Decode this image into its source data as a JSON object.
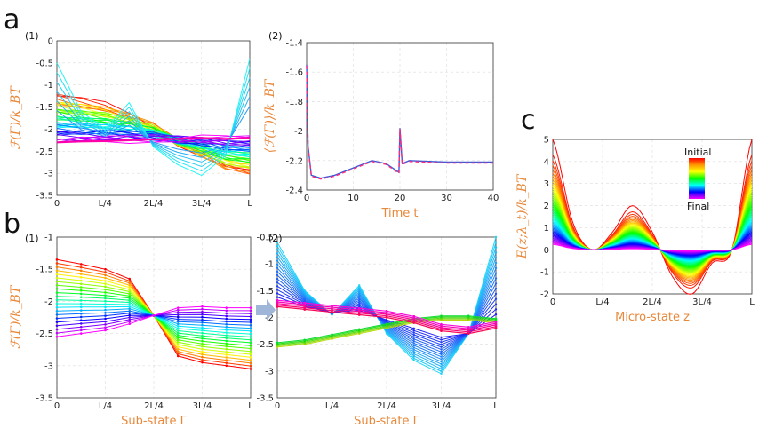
{
  "labels": {
    "panel_a": "a",
    "panel_b": "b",
    "panel_c": "c",
    "a1": "(1)",
    "a2": "(2)",
    "b1": "(1)",
    "b2": "(2)"
  },
  "chart_data": [
    {
      "id": "a1",
      "type": "line",
      "title": "(1)",
      "ylabel": "ℱ(Γ)/k_BT",
      "xlabel": "",
      "xticks": [
        "0",
        "L/4",
        "2L/4",
        "3L/4",
        "L"
      ],
      "yticks": [
        "0",
        "-0.5",
        "-1",
        "-1.5",
        "-2",
        "-2.5",
        "-3",
        "-3.5"
      ],
      "xlim": [
        0,
        1
      ],
      "ylim": [
        -3.5,
        0
      ],
      "description_series": "curves over sub-state Γ, colour from red (initial) through green and cyan to blue/magenta (final)",
      "series": [
        {
          "name": "initial",
          "values": [
            -1.25,
            -1.35,
            -1.45,
            -1.65,
            -1.9,
            -2.3,
            -2.6,
            -2.9,
            -3.0
          ]
        },
        {
          "name": "cyan outlier",
          "values": [
            -0.5,
            -1.6,
            -2.0,
            -1.4,
            -2.4,
            -2.8,
            -3.05,
            -2.6,
            -0.4
          ]
        },
        {
          "name": "final",
          "values": [
            -2.3,
            -2.28,
            -2.27,
            -2.25,
            -2.23,
            -2.22,
            -2.2,
            -2.22,
            -2.2
          ]
        }
      ]
    },
    {
      "id": "a2",
      "type": "line",
      "title": "(2)",
      "ylabel": "⟨ℱ(Γ)⟩/k_BT",
      "xlabel": "Time t",
      "xticks": [
        "0",
        "10",
        "20",
        "30",
        "40"
      ],
      "yticks": [
        "-1.4",
        "-1.6",
        "-1.8",
        "-2",
        "-2.2",
        "-2.4"
      ],
      "xlim": [
        0,
        40
      ],
      "ylim": [
        -2.4,
        -1.4
      ],
      "x": [
        0,
        0.3,
        1,
        3,
        6,
        10,
        14,
        17,
        19.8,
        20,
        20.5,
        22,
        30,
        40
      ],
      "series": [
        {
          "name": "free energy",
          "values": [
            -1.55,
            -2.1,
            -2.3,
            -2.32,
            -2.3,
            -2.25,
            -2.2,
            -2.22,
            -2.28,
            -1.98,
            -2.22,
            -2.2,
            -2.21,
            -2.21
          ]
        }
      ]
    },
    {
      "id": "b1",
      "type": "line",
      "title": "(1)",
      "ylabel": "ℱ(Γ)/k_BT",
      "xlabel": "Sub-state Γ",
      "xticks": [
        "0",
        "L/4",
        "2L/4",
        "3L/4",
        "L"
      ],
      "yticks": [
        "-1",
        "-1.5",
        "-2",
        "-2.5",
        "-3",
        "-3.5"
      ],
      "xlim": [
        0,
        1
      ],
      "ylim": [
        -3.5,
        -1
      ],
      "series": [
        {
          "name": "initial",
          "values": [
            -1.35,
            -1.42,
            -1.5,
            -1.65,
            -2.22,
            -2.85,
            -2.95,
            -3.0,
            -3.05
          ]
        },
        {
          "name": "final",
          "values": [
            -2.55,
            -2.5,
            -2.45,
            -2.35,
            -2.22,
            -2.1,
            -2.08,
            -2.1,
            -2.1
          ]
        }
      ]
    },
    {
      "id": "b2",
      "type": "line",
      "title": "(2)",
      "ylabel": "",
      "xlabel": "Sub-state Γ",
      "xticks": [
        "0",
        "L/4",
        "2L/4",
        "3L/4",
        "L"
      ],
      "yticks": [
        "-0.5",
        "-1",
        "-1.5",
        "-2",
        "-2.5",
        "-3",
        "-3.5"
      ],
      "xlim": [
        0,
        1
      ],
      "ylim": [
        -3.5,
        -0.5
      ],
      "series": [
        {
          "name": "cyan set",
          "values": [
            -0.6,
            -1.5,
            -1.95,
            -1.4,
            -2.3,
            -2.8,
            -3.05,
            -2.3,
            -0.5
          ]
        },
        {
          "name": "green set",
          "values": [
            -2.55,
            -2.5,
            -2.4,
            -2.3,
            -2.2,
            -2.1,
            -2.05,
            -2.05,
            -2.1
          ]
        },
        {
          "name": "red/magenta set",
          "values": [
            -1.8,
            -1.85,
            -1.9,
            -1.95,
            -2.0,
            -2.1,
            -2.25,
            -2.3,
            -2.2
          ]
        }
      ]
    },
    {
      "id": "c",
      "type": "line",
      "title": "",
      "ylabel": "E(z;λ_t)/k_BT",
      "xlabel": "Micro-state z",
      "xticks": [
        "0",
        "L/4",
        "2L/4",
        "3L/4",
        "L"
      ],
      "yticks": [
        "5",
        "4",
        "3",
        "2",
        "1",
        "0",
        "-1",
        "-2"
      ],
      "xlim": [
        0,
        1
      ],
      "ylim": [
        -2,
        5
      ],
      "legend": {
        "top": "Initial",
        "bottom": "Final",
        "placement": "top-right"
      },
      "series": [
        {
          "name": "initial",
          "values": [
            5,
            1.25,
            0,
            0.8,
            2,
            0.8,
            -1.2,
            -2,
            -0.6,
            0,
            5
          ]
        },
        {
          "name": "final",
          "values": [
            0.25,
            0.06,
            0,
            0.02,
            0.05,
            0.02,
            -0.03,
            -0.05,
            -0.02,
            0,
            0.25
          ]
        }
      ]
    }
  ]
}
